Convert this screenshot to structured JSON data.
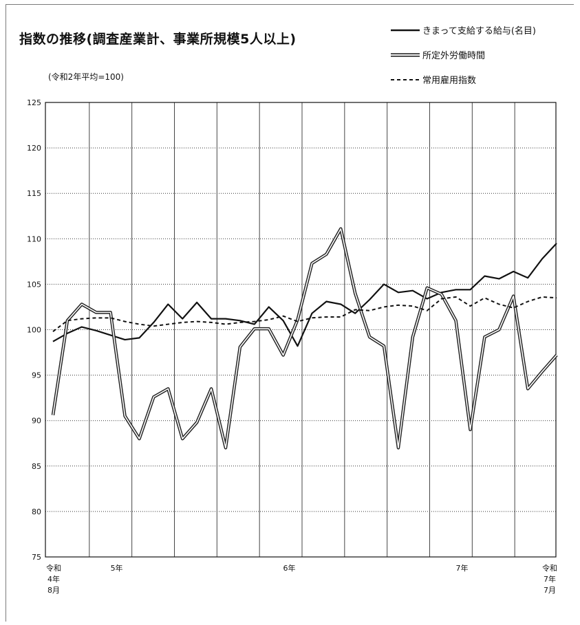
{
  "title": "指数の推移(調査産業計、事業所規模5人以上)",
  "subtitle": "(令和2年平均=100)",
  "legend": [
    {
      "label": "きまって支給する給与(名目)",
      "style": "solid"
    },
    {
      "label": "所定外労働時間",
      "style": "double"
    },
    {
      "label": "常用雇用指数",
      "style": "dashed"
    }
  ],
  "x_axis": {
    "ticks": [
      {
        "index": 0,
        "lines": [
          "令和",
          "4年",
          "8月"
        ]
      },
      {
        "index": 5,
        "lines": [
          "5年"
        ]
      },
      {
        "index": 17,
        "lines": [
          "6年"
        ]
      },
      {
        "index": 29,
        "lines": [
          "7年"
        ]
      },
      {
        "index": 35,
        "lines": [
          "令和",
          "7年",
          "7月"
        ]
      }
    ]
  },
  "chart_data": {
    "type": "line",
    "ylim": [
      75,
      125
    ],
    "yticks": [
      75,
      80,
      85,
      90,
      95,
      100,
      105,
      110,
      115,
      120,
      125
    ],
    "grid": true,
    "legend_position": "top-right",
    "x_count": 36,
    "x_start": "令和4年8月",
    "x_end": "令和7年7月",
    "series": [
      {
        "name": "きまって支給する給与(名目)",
        "style": "solid",
        "values": [
          98.7,
          99.6,
          100.3,
          99.9,
          99.4,
          98.9,
          99.1,
          100.8,
          102.8,
          101.2,
          103.0,
          101.2,
          101.2,
          101.0,
          100.6,
          102.5,
          101.0,
          98.2,
          101.8,
          103.1,
          102.8,
          101.8,
          103.3,
          105.0,
          104.1,
          104.3,
          103.4,
          104.1,
          104.4,
          104.4,
          105.9,
          105.6,
          106.4,
          105.7,
          107.8,
          109.5
        ]
      },
      {
        "name": "所定外労働時間",
        "style": "double",
        "values": [
          90.6,
          101.0,
          102.8,
          101.9,
          101.9,
          90.5,
          88.0,
          92.6,
          93.5,
          88.0,
          89.8,
          93.5,
          87.0,
          98.1,
          100.1,
          100.1,
          97.2,
          101.1,
          107.3,
          108.3,
          111.1,
          104.0,
          99.2,
          98.2,
          87.0,
          99.2,
          104.6,
          103.9,
          101.0,
          89.0,
          99.2,
          100.0,
          103.7,
          93.5,
          95.4,
          97.2
        ]
      },
      {
        "name": "常用雇用指数",
        "style": "dashed",
        "values": [
          99.8,
          101.0,
          101.2,
          101.3,
          101.3,
          100.9,
          100.6,
          100.4,
          100.6,
          100.8,
          100.9,
          100.8,
          100.6,
          100.8,
          100.9,
          101.1,
          101.5,
          100.9,
          101.3,
          101.4,
          101.4,
          102.2,
          102.1,
          102.5,
          102.7,
          102.6,
          102.1,
          103.4,
          103.6,
          102.6,
          103.5,
          102.8,
          102.4,
          103.1,
          103.6,
          103.5
        ]
      }
    ]
  }
}
